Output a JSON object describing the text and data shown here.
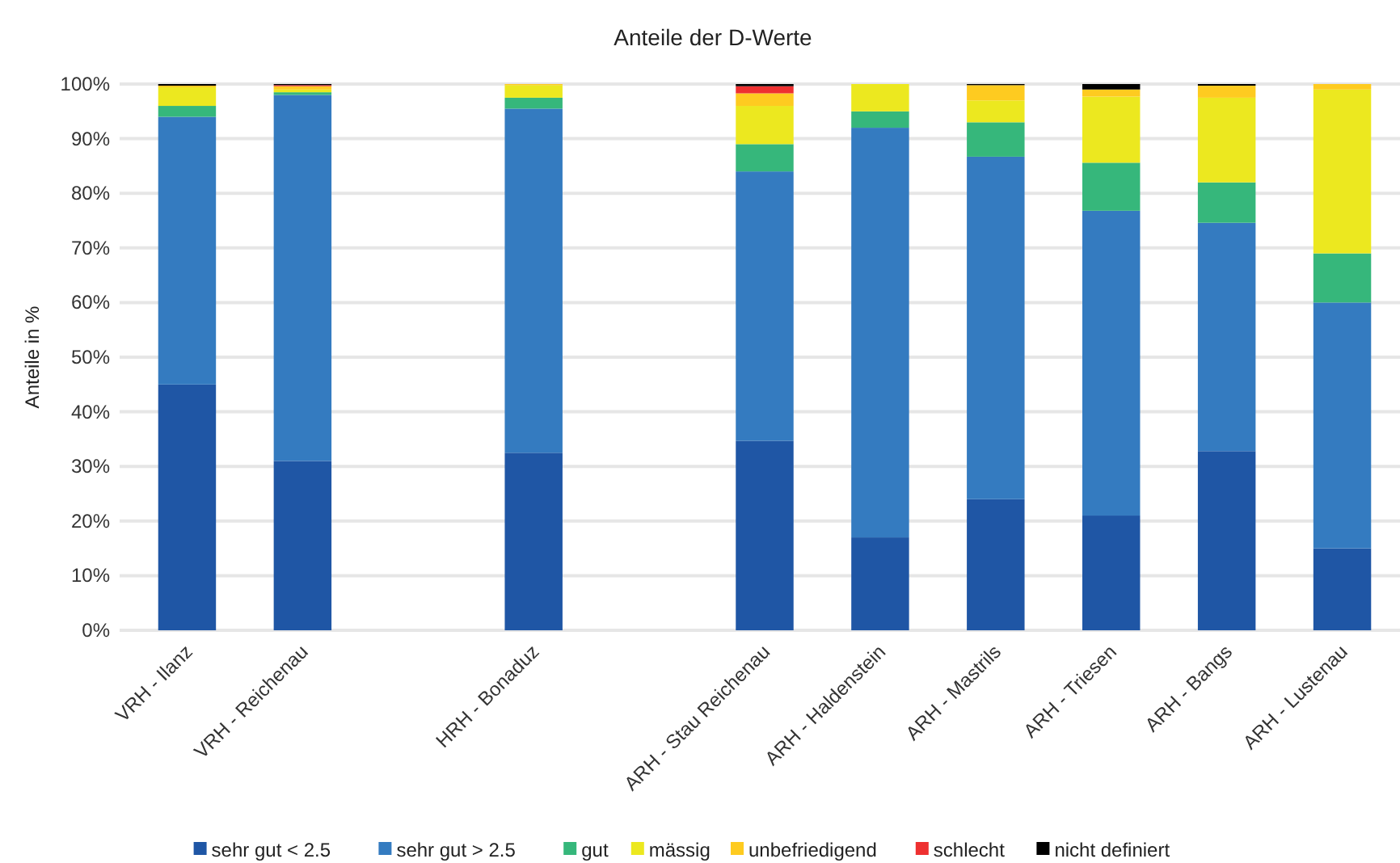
{
  "chart_data": {
    "type": "bar",
    "title": "Anteile der D-Werte",
    "ylabel": "Anteile in %",
    "stacked": true,
    "grid": "y",
    "legend": "bottom",
    "categories": [
      "VRH - Ilanz",
      "VRH - Reichenau",
      null,
      "HRH - Bonaduz",
      null,
      "ARH - Stau Reichenau",
      "ARH - Haldenstein",
      "ARH - Mastrils",
      "ARH - Triesen",
      "ARH - Bangs",
      "ARH - Lustenau"
    ],
    "ylim": [
      0,
      100
    ],
    "yticks": [
      {
        "value": 0,
        "label": "0%"
      },
      {
        "value": 10,
        "label": "10%"
      },
      {
        "value": 20,
        "label": "20%"
      },
      {
        "value": 30,
        "label": "30%"
      },
      {
        "value": 40,
        "label": "40%"
      },
      {
        "value": 50,
        "label": "50%"
      },
      {
        "value": 60,
        "label": "60%"
      },
      {
        "value": 70,
        "label": "70%"
      },
      {
        "value": 80,
        "label": "80%"
      },
      {
        "value": 90,
        "label": "90%"
      },
      {
        "value": 100,
        "label": "100%"
      }
    ],
    "series": [
      {
        "name": "sehr gut < 2.5",
        "color": "#1f56a5",
        "values": [
          45,
          31,
          null,
          32.5,
          null,
          34.7,
          17,
          24,
          21,
          32.8,
          15
        ]
      },
      {
        "name": "sehr gut > 2.5",
        "color": "#347bc0",
        "values": [
          49,
          67,
          null,
          63,
          null,
          49.3,
          75,
          62.7,
          55.8,
          41.8,
          45
        ]
      },
      {
        "name": "gut",
        "color": "#36b77b",
        "values": [
          2,
          0.5,
          null,
          2,
          null,
          5,
          3,
          6.3,
          8.8,
          7.4,
          9
        ]
      },
      {
        "name": "mässig",
        "color": "#ece81f",
        "values": [
          3.4,
          0.5,
          null,
          2.3,
          null,
          7,
          5,
          4,
          12.1,
          15.5,
          30
        ]
      },
      {
        "name": "unbefriedigend",
        "color": "#fecb20",
        "values": [
          0.3,
          0.6,
          null,
          0.2,
          null,
          2.3,
          0,
          2.8,
          1.3,
          2.2,
          1
        ]
      },
      {
        "name": "schlecht",
        "color": "#ee3030",
        "values": [
          0,
          0.2,
          null,
          0,
          null,
          1.3,
          0,
          0,
          0,
          0,
          0
        ]
      },
      {
        "name": "nicht definiert",
        "color": "#000000",
        "values": [
          0.3,
          0.2,
          null,
          0,
          null,
          0.4,
          0,
          0.2,
          1,
          0.3,
          0
        ]
      }
    ]
  }
}
